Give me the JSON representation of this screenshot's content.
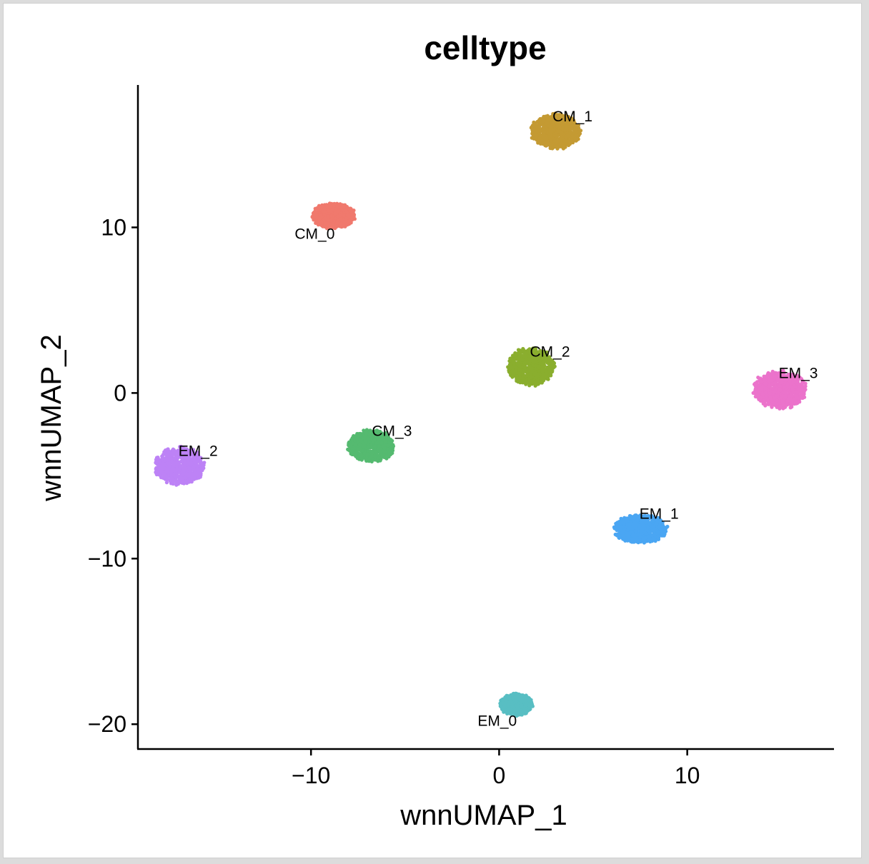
{
  "chart_data": {
    "type": "scatter",
    "title": "celltype",
    "xlabel": "wnnUMAP_1",
    "ylabel": "wnnUMAP_2",
    "xlim": [
      -19.2,
      17.8
    ],
    "ylim": [
      -21.5,
      18.6
    ],
    "xticks": [
      -10,
      0,
      10
    ],
    "yticks": [
      -20,
      -10,
      0,
      10
    ],
    "xtick_labels": [
      "−10",
      "0",
      "10"
    ],
    "ytick_labels": [
      "−20",
      "−10",
      "0",
      "10"
    ],
    "grid": false,
    "legend": "none",
    "clusters": [
      {
        "label": "CM_0",
        "color": "#F0796D",
        "center": [
          -8.8,
          10.7
        ],
        "spread": [
          1.2,
          0.8
        ],
        "label_pos": [
          -9.8,
          9.6
        ]
      },
      {
        "label": "CM_1",
        "color": "#C49A33",
        "center": [
          3.0,
          15.8
        ],
        "spread": [
          1.4,
          1.1
        ],
        "label_pos": [
          3.9,
          16.7
        ]
      },
      {
        "label": "CM_2",
        "color": "#8AAE2E",
        "center": [
          1.7,
          1.6
        ],
        "spread": [
          1.3,
          1.2
        ],
        "label_pos": [
          2.7,
          2.5
        ]
      },
      {
        "label": "CM_3",
        "color": "#55BA70",
        "center": [
          -6.8,
          -3.2
        ],
        "spread": [
          1.3,
          1.0
        ],
        "label_pos": [
          -5.7,
          -2.3
        ]
      },
      {
        "label": "EM_0",
        "color": "#58BEC3",
        "center": [
          0.9,
          -18.8
        ],
        "spread": [
          0.9,
          0.7
        ],
        "label_pos": [
          -0.1,
          -19.8
        ]
      },
      {
        "label": "EM_1",
        "color": "#4AA6F3",
        "center": [
          7.5,
          -8.2
        ],
        "spread": [
          1.5,
          0.9
        ],
        "label_pos": [
          8.5,
          -7.3
        ]
      },
      {
        "label": "EM_2",
        "color": "#BD82F6",
        "center": [
          -17.0,
          -4.4
        ],
        "spread": [
          1.4,
          1.2
        ],
        "label_pos": [
          -16.0,
          -3.5
        ]
      },
      {
        "label": "EM_3",
        "color": "#EB73CB",
        "center": [
          14.9,
          0.2
        ],
        "spread": [
          1.5,
          1.2
        ],
        "label_pos": [
          15.9,
          1.2
        ]
      }
    ]
  }
}
